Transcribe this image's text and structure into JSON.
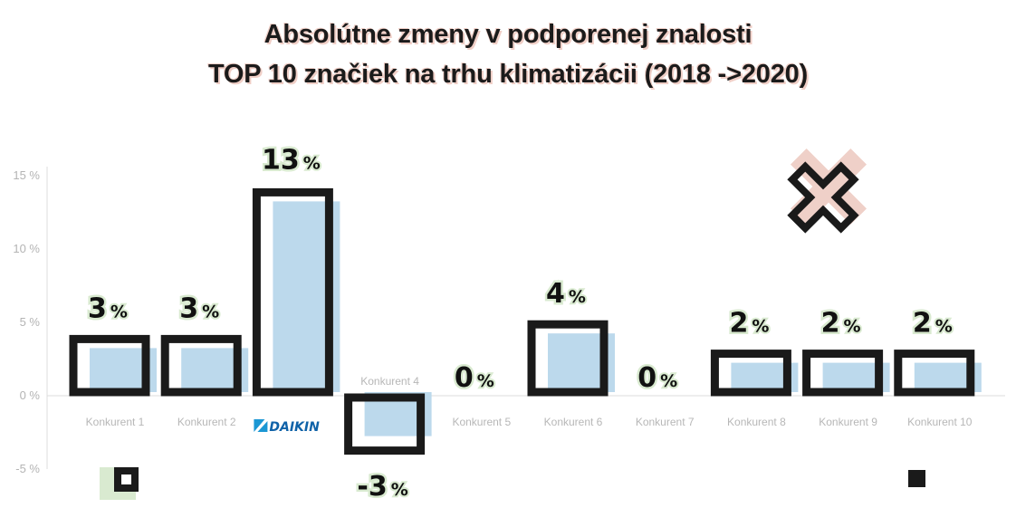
{
  "title_line1": "Absolútne zmeny v podporenej znalosti",
  "title_line2": "TOP 10 značiek na trhu klimatizácii (2018 ->2020)",
  "colors": {
    "bar_fill": "#bcd9ec",
    "frame": "#1a1a1a",
    "accent_pink": "#efd0c8",
    "accent_green": "#d9ead0"
  },
  "brand_logo_text": "DAIKIN",
  "chart_data": {
    "type": "bar",
    "title": "Absolútne zmeny v podporenej znalosti TOP 10 značiek na trhu klimatizácii (2018 ->2020)",
    "categories": [
      "Konkurent 1",
      "Konkurent 2",
      "DAIKIN",
      "Konkurent 4",
      "Konkurent 5",
      "Konkurent 6",
      "Konkurent 7",
      "Konkurent 8",
      "Konkurent 9",
      "Konkurent 10"
    ],
    "values": [
      3,
      3,
      13,
      -3,
      0,
      4,
      0,
      2,
      2,
      2
    ],
    "value_labels": [
      "3",
      "3",
      "13",
      "-3",
      "0",
      "4",
      "0",
      "2",
      "2",
      "2"
    ],
    "value_unit": "%",
    "y_ticks": [
      "15 %",
      "10 %",
      "5 %",
      "0 %",
      "-5 %"
    ],
    "ylim": [
      -5,
      15
    ],
    "grid": false,
    "legend": "none"
  }
}
